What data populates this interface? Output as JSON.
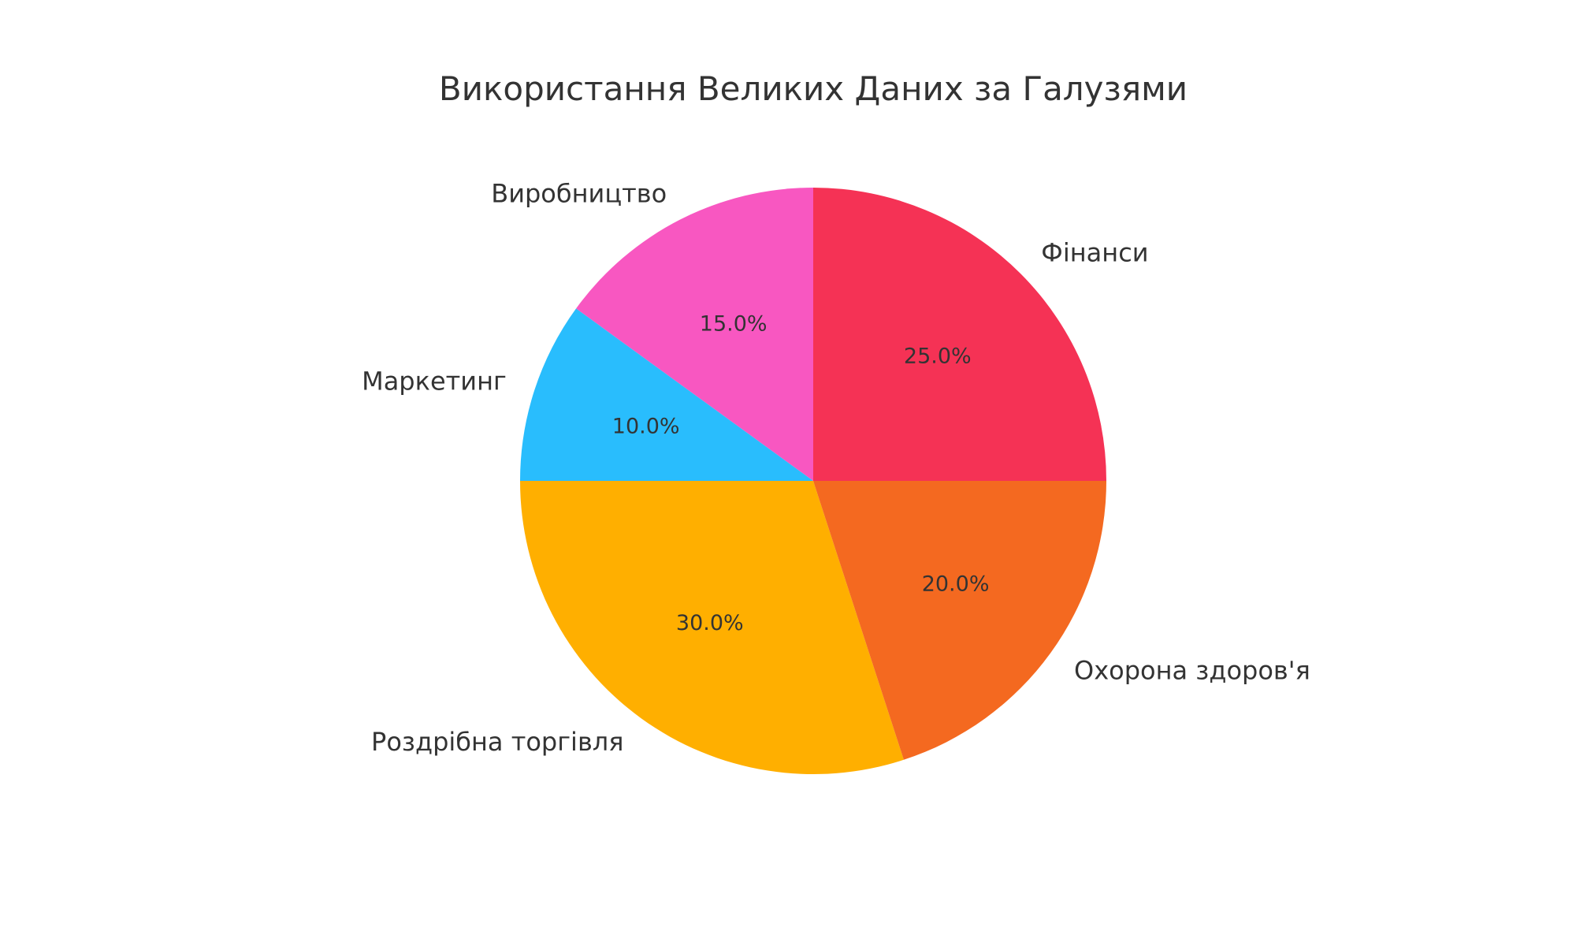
{
  "chart_data": {
    "type": "pie",
    "title": "Використання Великих Даних за Галузями",
    "start_angle_deg": 90,
    "direction": "counterclockwise",
    "slices": [
      {
        "label": "Виробництво",
        "value": 15.0,
        "pct_label": "15.0%",
        "color": "#F857C1"
      },
      {
        "label": "Маркетинг",
        "value": 10.0,
        "pct_label": "10.0%",
        "color": "#29BDFD"
      },
      {
        "label": "Роздрібна торгівля",
        "value": 30.0,
        "pct_label": "30.0%",
        "color": "#FFAF00"
      },
      {
        "label": "Охорона здоров'я",
        "value": 20.0,
        "pct_label": "20.0%",
        "color": "#F46920"
      },
      {
        "label": "Фінанси",
        "value": 25.0,
        "pct_label": "25.0%",
        "color": "#F53255"
      }
    ]
  }
}
